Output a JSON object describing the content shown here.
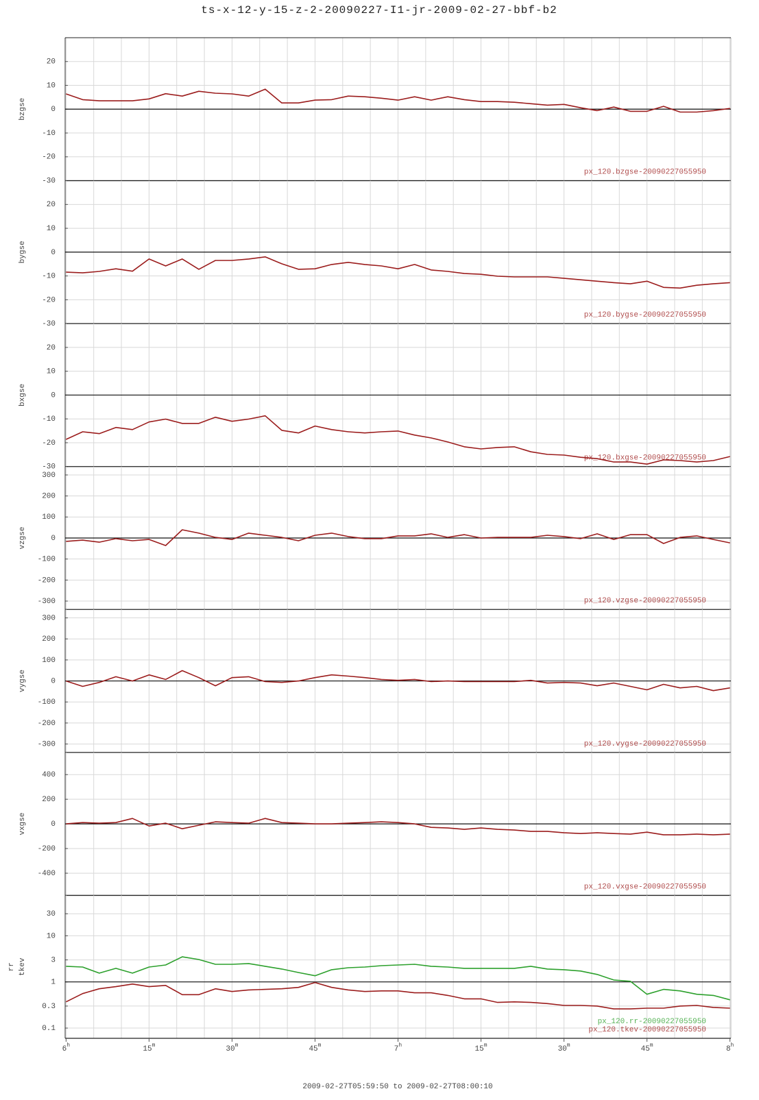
{
  "title": "ts-x-12-y-15-z-2-20090227-I1-jr-2009-02-27-bbf-b2",
  "x_axis": {
    "label": "2009-02-27T05:59:50 to 2009-02-27T08:00:10",
    "xlim": [
      -0.167,
      120.167
    ],
    "x": [
      0,
      3,
      6,
      9,
      12,
      15,
      18,
      21,
      24,
      27,
      30,
      33,
      36,
      39,
      42,
      45,
      48,
      51,
      54,
      57,
      60,
      63,
      66,
      69,
      72,
      75,
      78,
      81,
      84,
      87,
      90,
      93,
      96,
      99,
      102,
      105,
      108,
      111,
      114,
      117,
      120
    ],
    "xticks": [
      {
        "value": 0,
        "label": "6h"
      },
      {
        "value": 15,
        "label": "15m"
      },
      {
        "value": 30,
        "label": "30m"
      },
      {
        "value": 45,
        "label": "45m"
      },
      {
        "value": 60,
        "label": "7h"
      },
      {
        "value": 75,
        "label": "15m"
      },
      {
        "value": 90,
        "label": "30m"
      },
      {
        "value": 105,
        "label": "45m"
      },
      {
        "value": 120,
        "label": "8h"
      }
    ],
    "xgrid": [
      0,
      5,
      10,
      15,
      20,
      25,
      30,
      35,
      40,
      45,
      50,
      55,
      60,
      65,
      70,
      75,
      80,
      85,
      90,
      95,
      100,
      105,
      110,
      115,
      120
    ]
  },
  "chart_data": [
    {
      "type": "line",
      "ylabel": [
        "bzgse"
      ],
      "ylim": [
        -30,
        30
      ],
      "yticks": [
        -30,
        -20,
        -10,
        0,
        10,
        20
      ],
      "refline": 0,
      "grid": true,
      "legend": "lower right",
      "series": [
        {
          "name": "px_120.bzgse-20090227055950",
          "color": "#9b1c1c",
          "values": [
            6.4,
            4,
            3.5,
            3.5,
            3.5,
            4.3,
            6.5,
            5.5,
            7.5,
            6.7,
            6.4,
            5.5,
            8.4,
            2.6,
            2.6,
            3.8,
            4,
            5.5,
            5.2,
            4.6,
            3.8,
            5.2,
            3.8,
            5.2,
            4,
            3.2,
            3.2,
            2.9,
            2.3,
            1.7,
            2,
            0.6,
            -0.6,
            0.9,
            -0.9,
            -0.9,
            1.2,
            -1.2,
            -1.2,
            -0.6,
            0.3
          ]
        }
      ]
    },
    {
      "type": "line",
      "ylabel": [
        "bygse"
      ],
      "ylim": [
        -30,
        30
      ],
      "yticks": [
        -30,
        -20,
        -10,
        0,
        10,
        20
      ],
      "refline": 0,
      "grid": true,
      "legend": "lower right",
      "series": [
        {
          "name": "px_120.bygse-20090227055950",
          "color": "#9b1c1c",
          "values": [
            -8.4,
            -8.7,
            -8.1,
            -7,
            -8,
            -2.9,
            -5.8,
            -2.9,
            -7.2,
            -3.5,
            -3.5,
            -2.9,
            -2,
            -4.9,
            -7.2,
            -7,
            -5.2,
            -4.3,
            -5.2,
            -5.8,
            -7,
            -5.2,
            -7.5,
            -8.1,
            -9,
            -9.3,
            -10.1,
            -10.4,
            -10.4,
            -10.4,
            -11,
            -11.6,
            -12.2,
            -12.8,
            -13.3,
            -12.2,
            -14.8,
            -15.1,
            -13.9,
            -13.3,
            -12.8
          ]
        }
      ]
    },
    {
      "type": "line",
      "ylabel": [
        "bxgse"
      ],
      "ylim": [
        -30,
        30
      ],
      "yticks": [
        -30,
        -20,
        -10,
        0,
        10,
        20
      ],
      "refline": 0,
      "grid": true,
      "legend": "lower right",
      "series": [
        {
          "name": "px_120.bxgse-20090227055950",
          "color": "#9b1c1c",
          "values": [
            -18.6,
            -15.4,
            -16.2,
            -13.6,
            -14.5,
            -11.3,
            -10.1,
            -11.9,
            -11.9,
            -9.3,
            -11,
            -10.1,
            -8.7,
            -14.8,
            -15.9,
            -13,
            -14.5,
            -15.4,
            -15.9,
            -15.4,
            -15.1,
            -16.8,
            -18,
            -19.7,
            -21.7,
            -22.6,
            -22,
            -21.7,
            -23.8,
            -24.9,
            -25.2,
            -26.1,
            -26.7,
            -28.1,
            -28.1,
            -29,
            -27.2,
            -27.5,
            -28.1,
            -27.5,
            -25.8
          ]
        }
      ]
    },
    {
      "type": "line",
      "ylabel": [
        "vzgse"
      ],
      "ylim": [
        -340,
        340
      ],
      "yticks": [
        -300,
        -200,
        -100,
        0,
        100,
        200,
        300
      ],
      "refline": 0,
      "grid": true,
      "legend": "lower right",
      "series": [
        {
          "name": "px_120.vzgse-20090227055950",
          "color": "#9b1c1c",
          "values": [
            -16,
            -10,
            -20,
            -3,
            -13,
            -7,
            -36,
            39,
            23,
            3,
            -7,
            23,
            13,
            3,
            -13,
            13,
            23,
            7,
            -3,
            -3,
            10,
            10,
            20,
            3,
            16,
            0,
            3,
            3,
            3,
            13,
            7,
            -3,
            20,
            -7,
            16,
            16,
            -26,
            3,
            10,
            -7,
            -23
          ]
        }
      ]
    },
    {
      "type": "line",
      "ylabel": [
        "vygse"
      ],
      "ylim": [
        -340,
        340
      ],
      "yticks": [
        -300,
        -200,
        -100,
        0,
        100,
        200,
        300
      ],
      "refline": 0,
      "grid": true,
      "legend": "lower right",
      "series": [
        {
          "name": "px_120.vygse-20090227055950",
          "color": "#9b1c1c",
          "values": [
            0,
            -26,
            -7,
            20,
            0,
            29,
            7,
            49,
            16,
            -23,
            16,
            20,
            -3,
            -7,
            0,
            16,
            29,
            23,
            16,
            7,
            3,
            7,
            -3,
            0,
            -3,
            -3,
            -3,
            -3,
            3,
            -10,
            -7,
            -10,
            -23,
            -10,
            -26,
            -42,
            -16,
            -33,
            -26,
            -46,
            -33
          ]
        }
      ]
    },
    {
      "type": "line",
      "ylabel": [
        "vxgse"
      ],
      "ylim": [
        -580,
        580
      ],
      "yticks": [
        -400,
        -200,
        0,
        200,
        400
      ],
      "refline": 0,
      "grid": true,
      "legend": "lower right",
      "series": [
        {
          "name": "px_120.vxgse-20090227055950",
          "color": "#9b1c1c",
          "values": [
            0,
            11,
            6,
            11,
            44,
            -17,
            6,
            -39,
            -11,
            17,
            11,
            6,
            44,
            11,
            6,
            0,
            0,
            6,
            11,
            17,
            11,
            0,
            -28,
            -33,
            -44,
            -33,
            -44,
            -50,
            -61,
            -61,
            -72,
            -78,
            -72,
            -78,
            -83,
            -67,
            -89,
            -89,
            -83,
            -89,
            -83
          ]
        }
      ]
    },
    {
      "type": "line",
      "ylabel": [
        "rr",
        "tkev"
      ],
      "log": true,
      "ylim": [
        0.06,
        75
      ],
      "yticks": [
        0.1,
        0.3,
        1,
        3,
        10,
        30
      ],
      "refline": 1,
      "grid": true,
      "legend": "lower right",
      "series": [
        {
          "name": "px_120.rr-20090227055950",
          "color": "#2ca02c",
          "values": [
            2.18,
            2.1,
            1.55,
            1.97,
            1.55,
            2.1,
            2.33,
            3.5,
            3.06,
            2.41,
            2.41,
            2.5,
            2.18,
            1.9,
            1.6,
            1.36,
            1.84,
            2.03,
            2.1,
            2.25,
            2.33,
            2.41,
            2.18,
            2.1,
            1.97,
            1.97,
            1.97,
            1.97,
            2.18,
            1.9,
            1.84,
            1.72,
            1.45,
            1.1,
            1.03,
            0.54,
            0.69,
            0.64,
            0.54,
            0.51,
            0.41
          ]
        },
        {
          "name": "px_120.tkev-20090227055950",
          "color": "#9b1c1c",
          "values": [
            0.37,
            0.56,
            0.71,
            0.79,
            0.9,
            0.79,
            0.84,
            0.53,
            0.53,
            0.71,
            0.62,
            0.67,
            0.69,
            0.71,
            0.76,
            0.97,
            0.76,
            0.67,
            0.62,
            0.64,
            0.64,
            0.58,
            0.58,
            0.51,
            0.43,
            0.43,
            0.36,
            0.37,
            0.36,
            0.34,
            0.31,
            0.31,
            0.3,
            0.26,
            0.26,
            0.27,
            0.27,
            0.3,
            0.31,
            0.28,
            0.27
          ]
        }
      ]
    }
  ]
}
